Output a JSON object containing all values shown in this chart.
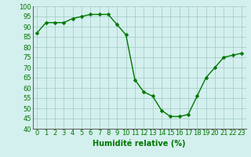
{
  "x": [
    0,
    1,
    2,
    3,
    4,
    5,
    6,
    7,
    8,
    9,
    10,
    11,
    12,
    13,
    14,
    15,
    16,
    17,
    18,
    19,
    20,
    21,
    22,
    23
  ],
  "y": [
    87,
    92,
    92,
    92,
    94,
    95,
    96,
    96,
    96,
    91,
    86,
    64,
    58,
    56,
    49,
    46,
    46,
    47,
    56,
    65,
    70,
    75,
    76,
    77
  ],
  "line_color": "#007700",
  "marker_color": "#007700",
  "bg_color": "#d4f0ee",
  "grid_color": "#a0c8c4",
  "xlabel": "Humidité relative (%)",
  "ylim": [
    40,
    100
  ],
  "xlim": [
    -0.5,
    23.5
  ],
  "yticks": [
    40,
    45,
    50,
    55,
    60,
    65,
    70,
    75,
    80,
    85,
    90,
    95,
    100
  ],
  "xticks": [
    0,
    1,
    2,
    3,
    4,
    5,
    6,
    7,
    8,
    9,
    10,
    11,
    12,
    13,
    14,
    15,
    16,
    17,
    18,
    19,
    20,
    21,
    22,
    23
  ],
  "xlabel_color": "#007700",
  "xlabel_fontsize": 7,
  "tick_fontsize": 6,
  "marker_size": 2.5,
  "line_width": 1.0
}
